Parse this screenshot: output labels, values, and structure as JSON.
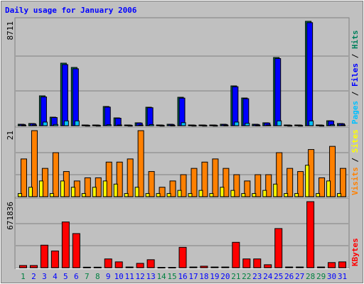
{
  "title": "Daily usage for January 2006",
  "chart_data": [
    {
      "type": "bar",
      "ylim": [
        0,
        8711
      ],
      "yticks": [
        8711
      ],
      "separator": "/",
      "series": [
        {
          "name": "Hits",
          "color": "#00805c",
          "values": [
            120,
            180,
            2490,
            710,
            5215,
            4860,
            60,
            60,
            1600,
            650,
            60,
            240,
            1540,
            60,
            120,
            2370,
            60,
            60,
            60,
            120,
            3320,
            2310,
            120,
            240,
            5690,
            60,
            60,
            8711,
            60,
            410,
            180
          ]
        },
        {
          "name": "Files",
          "color": "#0000ff",
          "values": [
            100,
            160,
            2400,
            680,
            5100,
            4750,
            50,
            50,
            1550,
            620,
            50,
            220,
            1500,
            50,
            100,
            2300,
            50,
            50,
            50,
            100,
            3250,
            2250,
            100,
            220,
            5600,
            50,
            50,
            8600,
            50,
            390,
            160
          ]
        },
        {
          "name": "Pages",
          "color": "#00c0ff",
          "values": [
            40,
            60,
            300,
            100,
            400,
            400,
            20,
            20,
            80,
            60,
            20,
            60,
            90,
            20,
            30,
            250,
            20,
            20,
            20,
            40,
            300,
            200,
            40,
            60,
            400,
            20,
            20,
            400,
            20,
            80,
            60
          ]
        }
      ]
    },
    {
      "type": "bar",
      "ylim": [
        0,
        21
      ],
      "yticks": [
        21
      ],
      "separator": "/",
      "series": [
        {
          "name": "Sites",
          "color": "#ffff00",
          "values": [
            1,
            3,
            5,
            1,
            5,
            3,
            1,
            3,
            5,
            4,
            1,
            3,
            1,
            1,
            1,
            2,
            1,
            2,
            1,
            3,
            2,
            1,
            1,
            2,
            4,
            1,
            1,
            10,
            1,
            5,
            1
          ]
        },
        {
          "name": "Visits",
          "color": "#ff8000",
          "values": [
            12,
            21,
            9,
            14,
            8,
            5,
            6,
            6,
            11,
            11,
            12,
            21,
            8,
            3,
            5,
            7,
            9,
            11,
            12,
            9,
            7,
            5,
            7,
            7,
            14,
            9,
            8,
            15,
            6,
            16,
            9
          ]
        }
      ]
    },
    {
      "type": "bar",
      "ylim": [
        0,
        671836
      ],
      "yticks": [
        671836
      ],
      "categories": [
        "1",
        "2",
        "3",
        "4",
        "5",
        "6",
        "7",
        "8",
        "9",
        "10",
        "11",
        "12",
        "13",
        "14",
        "15",
        "16",
        "17",
        "18",
        "19",
        "20",
        "21",
        "22",
        "23",
        "24",
        "25",
        "26",
        "27",
        "28",
        "29",
        "30",
        "31"
      ],
      "category_colors": [
        "#008040",
        "#0000ff",
        "#0000ff",
        "#0000ff",
        "#0000ff",
        "#0000ff",
        "#008040",
        "#008040",
        "#0000ff",
        "#0000ff",
        "#0000ff",
        "#0000ff",
        "#0000ff",
        "#008040",
        "#008040",
        "#0000ff",
        "#0000ff",
        "#0000ff",
        "#0000ff",
        "#0000ff",
        "#008040",
        "#008040",
        "#0000ff",
        "#0000ff",
        "#0000ff",
        "#0000ff",
        "#0000ff",
        "#008040",
        "#008040",
        "#0000ff",
        "#0000ff"
      ],
      "series": [
        {
          "name": "KBytes",
          "color": "#ff0000",
          "values": [
            22000,
            22000,
            229000,
            170000,
            465000,
            347000,
            5000,
            5000,
            89000,
            59000,
            7000,
            44000,
            81000,
            3000,
            3000,
            207000,
            7000,
            15000,
            7000,
            7000,
            258000,
            89000,
            89000,
            30000,
            398000,
            7000,
            7000,
            671836,
            7000,
            52000,
            59000
          ]
        }
      ]
    }
  ]
}
